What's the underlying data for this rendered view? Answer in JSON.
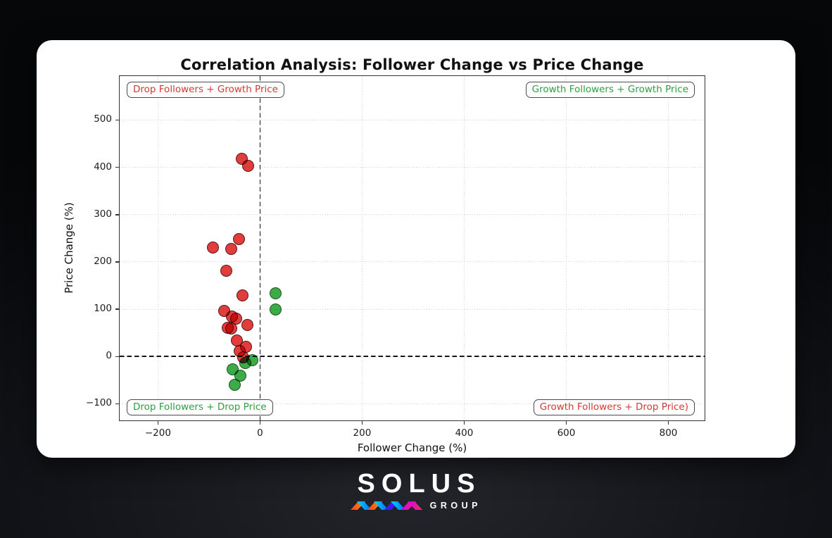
{
  "page": {
    "background_color": "#0b0c10",
    "card_color": "#ffffff"
  },
  "chart_data": {
    "type": "scatter",
    "title": "Correlation Analysis: Follower Change vs Price Change",
    "xlabel": "Follower Change (%)",
    "ylabel": "Price Change (%)",
    "xlim": [
      -275,
      871
    ],
    "ylim": [
      -135,
      593
    ],
    "xticks": [
      -200,
      0,
      200,
      400,
      600,
      800
    ],
    "yticks": [
      -100,
      0,
      100,
      200,
      300,
      400,
      500
    ],
    "grid": true,
    "grid_style": "dotted",
    "reference_lines": {
      "x": 0,
      "y": 0,
      "style": "dashed",
      "color": "#161616"
    },
    "series": [
      {
        "name": "green-markers",
        "color": "#3dab48",
        "edge": "#1c5524",
        "points": [
          [
            30,
            133
          ],
          [
            30,
            100
          ],
          [
            -15,
            -8
          ],
          [
            -29,
            -14
          ],
          [
            -54,
            -27
          ],
          [
            -39,
            -40
          ],
          [
            -50,
            -60
          ]
        ]
      },
      {
        "name": "red-markers",
        "color": "#e23d3d",
        "edge": "#58181a",
        "points": [
          [
            -36,
            418
          ],
          [
            -23,
            403
          ],
          [
            -41,
            249
          ],
          [
            -92,
            231
          ],
          [
            -56,
            227
          ],
          [
            -66,
            182
          ],
          [
            -34,
            129
          ],
          [
            -70,
            96
          ],
          [
            -55,
            85
          ],
          [
            -47,
            80
          ],
          [
            -25,
            67
          ],
          [
            -63,
            61
          ],
          [
            -56,
            59
          ],
          [
            -45,
            34
          ],
          [
            -28,
            21
          ],
          [
            -40,
            12
          ],
          [
            -33,
            -2
          ]
        ]
      }
    ],
    "quadrant_labels": [
      {
        "text": "Drop Followers + Growth Price",
        "color": "#d43a34",
        "position": "top-left"
      },
      {
        "text": "Growth Followers + Growth Price",
        "color": "#2f9e41",
        "position": "top-right"
      },
      {
        "text": "Drop Followers + Drop Price",
        "color": "#2f9e41",
        "position": "bottom-left"
      },
      {
        "text": "Growth Followers + Drop Price)",
        "color": "#d43a34",
        "position": "bottom-right"
      }
    ]
  },
  "footer": {
    "brand": "SOLUS",
    "brand_sub": "GROUP"
  }
}
